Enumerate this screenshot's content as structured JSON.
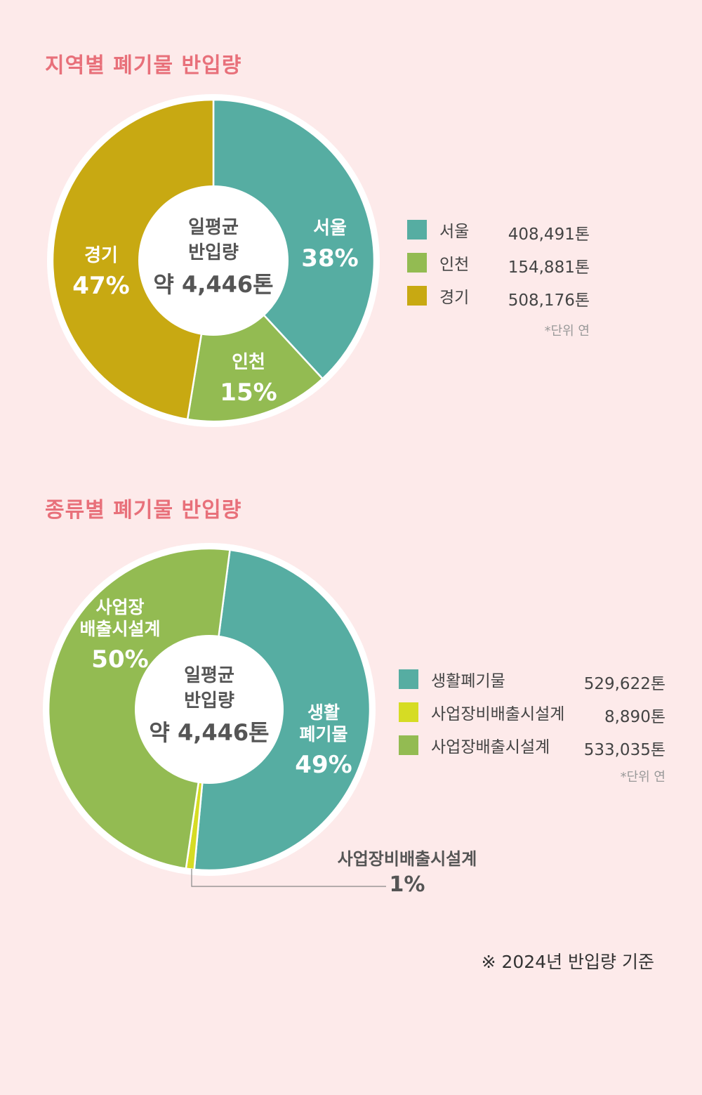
{
  "section1": {
    "title": "지역별 폐기물 반입량",
    "center": {
      "line1": "일평균",
      "line2": "반입량",
      "line3": "약 4,446톤"
    },
    "legend": [
      {
        "name": "서울",
        "value": "408,491톤"
      },
      {
        "name": "인천",
        "value": "154,881톤"
      },
      {
        "name": "경기",
        "value": "508,176톤"
      }
    ],
    "unit_note": "*단위 연"
  },
  "section2": {
    "title": "종류별 폐기물 반입량",
    "center": {
      "line1": "일평균",
      "line2": "반입량",
      "line3": "약 4,446톤"
    },
    "legend": [
      {
        "name": "생활폐기물",
        "value": "529,622톤"
      },
      {
        "name": "사업장비배출시설계",
        "value": "8,890톤"
      },
      {
        "name": "사업장배출시설계",
        "value": "533,035톤"
      }
    ],
    "unit_note": "*단위 연",
    "callout": {
      "name": "사업장비배출시설계",
      "pct": "1%"
    }
  },
  "footnote": "※ 2024년 반입량 기준",
  "colors": {
    "teal": "#56ada2",
    "green": "#93bb52",
    "mustard": "#c8a912",
    "lime": "#d6dc24",
    "title": "#e8707a",
    "background": "#fdeaea"
  },
  "chart_data": [
    {
      "type": "pie",
      "title": "지역별 폐기물 반입량",
      "categories": [
        "서울",
        "인천",
        "경기"
      ],
      "values": [
        408491,
        154881,
        508176
      ],
      "percent_labels": [
        "38%",
        "15%",
        "47%"
      ],
      "segment_labels": [
        [
          "서울"
        ],
        [
          "인천"
        ],
        [
          "경기"
        ]
      ],
      "colors": [
        "#56ada2",
        "#93bb52",
        "#c8a912"
      ]
    },
    {
      "type": "pie",
      "title": "종류별 폐기물 반입량",
      "categories": [
        "생활폐기물",
        "사업장비배출시설계",
        "사업장배출시설계"
      ],
      "values": [
        529622,
        8890,
        533035
      ],
      "percent_labels": [
        "49%",
        "",
        "50%"
      ],
      "segment_labels": [
        [
          "생활",
          "폐기물"
        ],
        [],
        [
          "사업장",
          "배출시설계"
        ]
      ],
      "colors": [
        "#56ada2",
        "#d6dc24",
        "#93bb52"
      ]
    }
  ]
}
